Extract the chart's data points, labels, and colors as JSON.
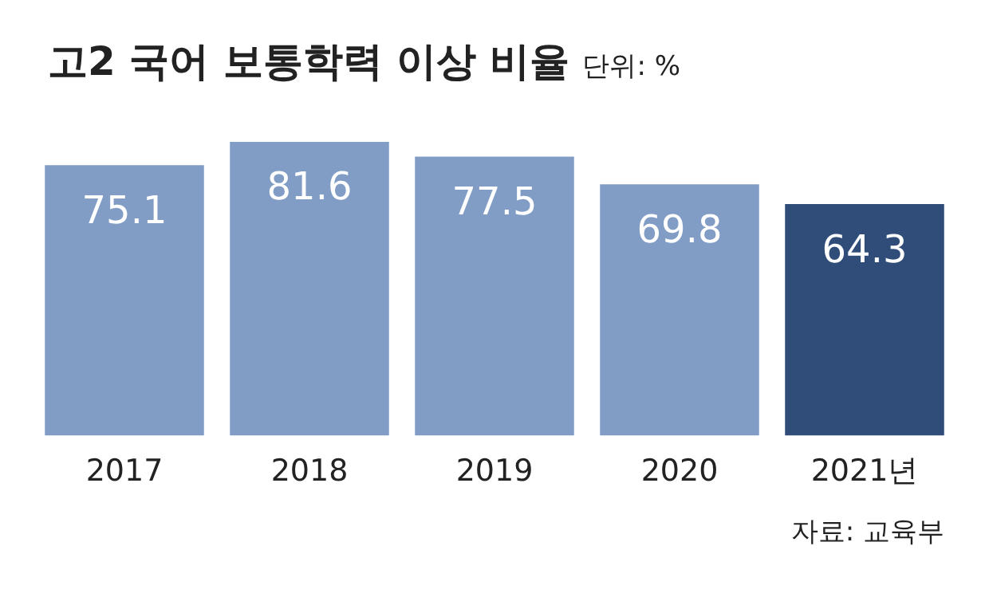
{
  "chart_data": {
    "type": "bar",
    "title": "고2 국어 보통학력 이상 비율",
    "subtitle": "단위: %",
    "categories": [
      "2017",
      "2018",
      "2019",
      "2020",
      "2021년"
    ],
    "values": [
      75.1,
      81.6,
      77.5,
      69.8,
      64.3
    ],
    "colors": [
      "#819dc6",
      "#819dc6",
      "#819dc6",
      "#819dc6",
      "#2f4d78"
    ],
    "data_labels": true,
    "grid": false,
    "legend": false,
    "annotations": [
      "자료: 교육부"
    ]
  }
}
